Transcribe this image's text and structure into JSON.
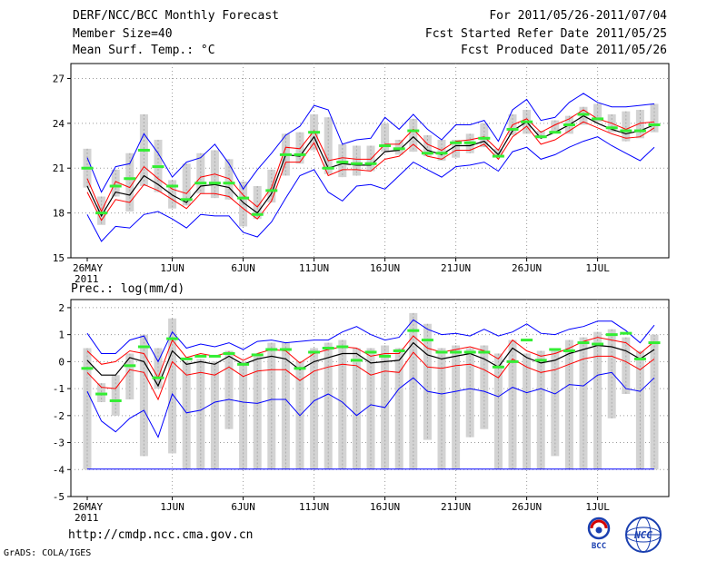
{
  "header": {
    "title": "DERF/NCC/BCC Monthly Forecast",
    "member_size": "Member Size=40",
    "variable": "Mean Surf. Temp.: °C",
    "period": "For 2011/05/26-2011/07/04",
    "start_date": "Fcst Started Refer Date 2011/05/25",
    "produced_date": "Fcst Produced Date 2011/05/26"
  },
  "footer": {
    "url": "http://cmdp.ncc.cma.gov.cn",
    "credit": "GrADS: COLA/IGES",
    "logo_left": "BCC",
    "logo_right": "NCC"
  },
  "colors": {
    "box": "#d3d3d3",
    "whisker": "#ababab",
    "mean": "#000000",
    "spread": "#ff0000",
    "envelope": "#0000ff",
    "obs": "#33ee33"
  },
  "chart_data": [
    {
      "type": "line",
      "title": "Mean Surf. Temp.: °C",
      "ylabel": "",
      "ylim": [
        15,
        28
      ],
      "yticks": [
        15,
        18,
        21,
        24,
        27
      ],
      "xlim": [
        0,
        39
      ],
      "xticks": [
        {
          "d": 0,
          "label": "26MAY",
          "sub": "2011"
        },
        {
          "d": 6,
          "label": "1JUN"
        },
        {
          "d": 11,
          "label": "6JUN"
        },
        {
          "d": 16,
          "label": "11JUN"
        },
        {
          "d": 21,
          "label": "16JUN"
        },
        {
          "d": 26,
          "label": "21JUN"
        },
        {
          "d": 31,
          "label": "26JUN"
        },
        {
          "d": 36,
          "label": "1JUL"
        }
      ],
      "series": [
        {
          "name": "max",
          "values": [
            17.9,
            16.1,
            17.1,
            17.0,
            17.9,
            18.1,
            17.6,
            17.0,
            17.9,
            17.8,
            17.8,
            16.7,
            16.4,
            17.4,
            19.0,
            20.5,
            20.9,
            19.4,
            18.8,
            19.8,
            19.9,
            19.6,
            20.5,
            21.4,
            20.9,
            20.4,
            21.1,
            21.2,
            21.4,
            20.8,
            22.1,
            22.4,
            21.6,
            21.9,
            22.4,
            22.8,
            23.1,
            22.5,
            22.0,
            21.5,
            22.4
          ]
        },
        {
          "name": "mean-minus",
          "values": [
            19.4,
            17.5,
            18.9,
            18.7,
            19.9,
            19.5,
            18.9,
            18.3,
            19.3,
            19.3,
            19.1,
            18.3,
            17.6,
            18.8,
            21.4,
            21.4,
            22.7,
            20.5,
            20.9,
            20.9,
            20.8,
            21.6,
            21.8,
            22.6,
            21.8,
            21.6,
            22.2,
            22.2,
            22.6,
            21.6,
            23.1,
            23.8,
            22.6,
            22.9,
            23.5,
            24.1,
            23.7,
            23.3,
            23.0,
            23.1,
            23.7
          ]
        },
        {
          "name": "mean",
          "values": [
            19.8,
            17.8,
            19.4,
            19.2,
            20.5,
            19.9,
            19.2,
            18.7,
            19.8,
            19.9,
            19.7,
            18.7,
            18.0,
            19.3,
            21.9,
            21.8,
            23.1,
            21.0,
            21.3,
            21.2,
            21.2,
            22.1,
            22.2,
            23.1,
            22.2,
            21.9,
            22.5,
            22.5,
            22.8,
            21.9,
            23.5,
            24.1,
            23.0,
            23.4,
            23.9,
            24.5,
            24.0,
            23.6,
            23.3,
            23.5,
            23.9
          ]
        },
        {
          "name": "mean-plus",
          "values": [
            20.3,
            18.1,
            20.1,
            19.7,
            21.1,
            20.3,
            19.6,
            19.3,
            20.4,
            20.6,
            20.3,
            19.2,
            18.4,
            19.7,
            22.4,
            22.3,
            23.5,
            21.5,
            21.7,
            21.6,
            21.6,
            22.6,
            22.6,
            23.6,
            22.6,
            22.2,
            22.8,
            22.9,
            23.1,
            22.2,
            23.9,
            24.3,
            23.4,
            23.9,
            24.3,
            24.9,
            24.3,
            24.0,
            23.6,
            24.0,
            24.1
          ]
        },
        {
          "name": "min",
          "values": [
            21.7,
            19.4,
            21.1,
            21.3,
            23.3,
            22.0,
            20.4,
            21.4,
            21.7,
            22.6,
            21.3,
            19.6,
            20.9,
            22.0,
            23.2,
            23.8,
            25.2,
            24.9,
            22.6,
            22.9,
            23.0,
            24.4,
            23.6,
            24.6,
            23.6,
            22.9,
            23.9,
            23.9,
            24.2,
            22.8,
            24.9,
            25.6,
            24.2,
            24.4,
            25.4,
            26.0,
            25.4,
            25.1,
            25.1,
            25.2,
            25.3
          ]
        },
        {
          "name": "box-low",
          "values": [
            19.7,
            17.2,
            19.1,
            18.1,
            19.8,
            19.4,
            18.3,
            18.5,
            19.3,
            19.0,
            18.9,
            17.1,
            17.6,
            18.7,
            20.5,
            21.3,
            22.2,
            20.6,
            20.4,
            20.5,
            20.8,
            22.1,
            21.9,
            22.1,
            21.8,
            21.5,
            21.7,
            22.0,
            22.4,
            21.9,
            23.2,
            23.3,
            23.0,
            23.4,
            23.3,
            23.9,
            24.1,
            23.4,
            22.8,
            23.0,
            23.4
          ]
        },
        {
          "name": "box-high",
          "values": [
            22.3,
            19.1,
            20.9,
            22.0,
            24.6,
            22.9,
            20.2,
            21.3,
            22.0,
            22.2,
            21.6,
            20.1,
            19.8,
            20.9,
            23.3,
            23.4,
            24.6,
            24.4,
            22.6,
            22.5,
            22.5,
            24.0,
            22.9,
            24.3,
            23.2,
            22.9,
            22.9,
            23.3,
            24.0,
            22.3,
            24.6,
            24.9,
            23.5,
            24.2,
            24.5,
            25.1,
            25.3,
            24.6,
            24.8,
            24.9,
            25.3
          ]
        },
        {
          "name": "obs",
          "values": [
            21.0,
            18.0,
            19.8,
            20.3,
            22.2,
            21.1,
            19.8,
            18.9,
            20.0,
            20.0,
            20.0,
            19.0,
            17.9,
            19.5,
            21.9,
            21.9,
            23.4,
            21.0,
            21.4,
            21.3,
            21.3,
            22.5,
            22.3,
            23.5,
            22.0,
            22.0,
            22.7,
            22.7,
            23.0,
            21.8,
            23.6,
            24.1,
            23.1,
            23.4,
            23.9,
            24.6,
            24.3,
            23.7,
            23.5,
            23.5,
            23.9
          ]
        }
      ]
    },
    {
      "type": "line",
      "title": "Prec.: log(mm/d)",
      "ylabel": "",
      "ylim": [
        -5,
        2.3
      ],
      "yticks": [
        -5,
        -4,
        -3,
        -2,
        -1,
        0,
        1,
        2
      ],
      "xlim": [
        0,
        39
      ],
      "xticks": [
        {
          "d": 0,
          "label": "26MAY",
          "sub": "2011"
        },
        {
          "d": 6,
          "label": "1JUN"
        },
        {
          "d": 11,
          "label": "6JUN"
        },
        {
          "d": 16,
          "label": "11JUN"
        },
        {
          "d": 21,
          "label": "16JUN"
        },
        {
          "d": 26,
          "label": "21JUN"
        },
        {
          "d": 31,
          "label": "26JUN"
        },
        {
          "d": 36,
          "label": "1JUL"
        }
      ],
      "series": [
        {
          "name": "max",
          "values": [
            1.05,
            0.3,
            0.3,
            0.8,
            0.95,
            0.0,
            1.1,
            0.5,
            0.65,
            0.55,
            0.7,
            0.45,
            0.75,
            0.8,
            0.7,
            0.75,
            0.8,
            0.8,
            1.1,
            1.3,
            1.0,
            0.8,
            0.9,
            1.55,
            1.2,
            1.0,
            1.05,
            0.95,
            1.2,
            0.95,
            1.1,
            1.4,
            1.05,
            1.0,
            1.2,
            1.3,
            1.5,
            1.5,
            1.15,
            0.7,
            1.35
          ]
        },
        {
          "name": "mean-plus",
          "values": [
            0.4,
            -0.1,
            0.0,
            0.4,
            0.3,
            -0.6,
            0.8,
            0.15,
            0.3,
            0.2,
            0.35,
            0.05,
            0.3,
            0.45,
            0.4,
            -0.05,
            0.3,
            0.45,
            0.55,
            0.5,
            0.2,
            0.3,
            0.3,
            0.95,
            0.5,
            0.35,
            0.45,
            0.55,
            0.4,
            0.1,
            0.8,
            0.4,
            0.2,
            0.3,
            0.5,
            0.75,
            0.9,
            0.8,
            0.7,
            0.3,
            0.75
          ]
        },
        {
          "name": "mean",
          "values": [
            0.05,
            -0.5,
            -0.5,
            0.15,
            0.0,
            -0.9,
            0.4,
            -0.1,
            0.0,
            -0.1,
            0.2,
            -0.1,
            0.1,
            0.2,
            0.1,
            -0.3,
            0.0,
            0.15,
            0.3,
            0.3,
            -0.05,
            0.0,
            0.05,
            0.7,
            0.25,
            0.1,
            0.2,
            0.3,
            0.1,
            -0.2,
            0.5,
            0.15,
            -0.05,
            0.05,
            0.3,
            0.45,
            0.6,
            0.55,
            0.4,
            0.1,
            0.45
          ]
        },
        {
          "name": "mean-minus",
          "values": [
            -0.4,
            -0.95,
            -1.0,
            -0.3,
            -0.4,
            -1.4,
            0.0,
            -0.5,
            -0.4,
            -0.5,
            -0.2,
            -0.55,
            -0.35,
            -0.3,
            -0.3,
            -0.7,
            -0.35,
            -0.2,
            -0.1,
            -0.15,
            -0.5,
            -0.35,
            -0.4,
            0.35,
            -0.2,
            -0.25,
            -0.15,
            -0.1,
            -0.3,
            -0.6,
            0.1,
            -0.2,
            -0.4,
            -0.3,
            -0.1,
            0.1,
            0.2,
            0.2,
            0.0,
            -0.3,
            0.1
          ]
        },
        {
          "name": "min",
          "values": [
            -1.1,
            -2.2,
            -2.6,
            -2.1,
            -1.8,
            -2.8,
            -1.2,
            -1.9,
            -1.8,
            -1.5,
            -1.4,
            -1.5,
            -1.55,
            -1.4,
            -1.4,
            -2.0,
            -1.45,
            -1.2,
            -1.5,
            -2.0,
            -1.6,
            -1.7,
            -1.0,
            -0.6,
            -1.1,
            -1.2,
            -1.1,
            -1.0,
            -1.1,
            -1.3,
            -0.95,
            -1.15,
            -1.0,
            -1.2,
            -0.85,
            -0.9,
            -0.5,
            -0.4,
            -1.0,
            -1.1,
            -0.6
          ]
        },
        {
          "name": "floor",
          "values": [
            -3.98,
            -3.98,
            -3.98,
            -3.98,
            -3.98,
            -3.98,
            -3.98,
            -3.98,
            -3.98,
            -3.98,
            -3.98,
            -3.98,
            -3.98,
            -3.98,
            -3.98,
            -3.98,
            -3.98,
            -3.98,
            -3.98,
            -3.98,
            -3.98,
            -3.98,
            -3.98,
            -3.98,
            -3.98,
            -3.98,
            -3.98,
            -3.98,
            -3.98,
            -3.98,
            -3.98,
            -3.98,
            -3.98,
            -3.98,
            -3.98,
            -3.98,
            -3.98,
            -3.98,
            -3.98,
            -3.98,
            -3.98
          ]
        },
        {
          "name": "box-low",
          "values": [
            -4.0,
            -1.5,
            -2.0,
            -1.4,
            -3.5,
            -1.0,
            -3.4,
            -4.0,
            -4.0,
            -4.0,
            -2.5,
            -4.0,
            -4.0,
            -4.0,
            -4.0,
            -4.0,
            -4.0,
            -4.0,
            -4.0,
            -4.0,
            -4.0,
            -4.0,
            -4.0,
            -4.0,
            -2.9,
            -4.0,
            -4.0,
            -2.8,
            -2.5,
            -4.0,
            -4.0,
            -4.0,
            -4.0,
            -3.5,
            -4.0,
            -4.0,
            -4.0,
            -2.1,
            -1.2,
            -4.0,
            -4.0
          ]
        },
        {
          "name": "box-high",
          "values": [
            0.5,
            -0.8,
            -0.5,
            0.3,
            1.0,
            0.5,
            1.6,
            0.0,
            0.1,
            0.0,
            0.4,
            0.0,
            0.3,
            0.7,
            0.7,
            0.0,
            0.5,
            0.7,
            0.8,
            0.5,
            0.5,
            0.6,
            0.5,
            1.8,
            1.4,
            0.5,
            0.6,
            0.5,
            0.6,
            0.3,
            0.8,
            0.3,
            0.4,
            0.5,
            0.8,
            0.9,
            1.1,
            1.2,
            0.9,
            0.4,
            1.0
          ]
        },
        {
          "name": "obs",
          "values": [
            -0.25,
            -1.2,
            -1.45,
            -0.15,
            0.55,
            -0.6,
            0.85,
            0.1,
            0.2,
            0.2,
            0.3,
            -0.1,
            0.25,
            0.45,
            0.45,
            -0.25,
            0.35,
            0.5,
            0.55,
            0.05,
            0.35,
            0.2,
            0.4,
            1.15,
            0.8,
            0.35,
            0.35,
            0.35,
            0.35,
            -0.2,
            0.0,
            0.8,
            0.05,
            0.45,
            0.4,
            0.7,
            0.65,
            1.0,
            1.05,
            0.1,
            0.7
          ]
        }
      ]
    }
  ]
}
